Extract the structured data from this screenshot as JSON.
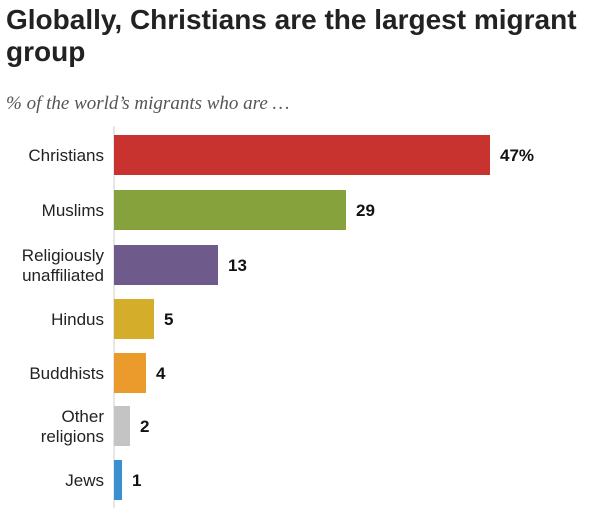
{
  "chart_data": {
    "type": "bar",
    "orientation": "horizontal",
    "title": "Globally, Christians are the largest migrant group",
    "subtitle": "% of the world’s migrants who are …",
    "categories": [
      [
        "Christians"
      ],
      [
        "Muslims"
      ],
      [
        "Religiously",
        "unaffiliated"
      ],
      [
        "Hindus"
      ],
      [
        "Buddhists"
      ],
      [
        "Other",
        "religions"
      ],
      [
        "Jews"
      ]
    ],
    "values": [
      47,
      29,
      13,
      5,
      4,
      2,
      1
    ],
    "value_labels": [
      "47%",
      "29",
      "13",
      "5",
      "4",
      "2",
      "1"
    ],
    "colors": [
      "#c8332f",
      "#85a23c",
      "#6e5b8c",
      "#d4ad2b",
      "#eb9a2c",
      "#c4c4c4",
      "#3a8fcf"
    ],
    "xlim": [
      0,
      47
    ],
    "grid": false,
    "legend": "none"
  }
}
